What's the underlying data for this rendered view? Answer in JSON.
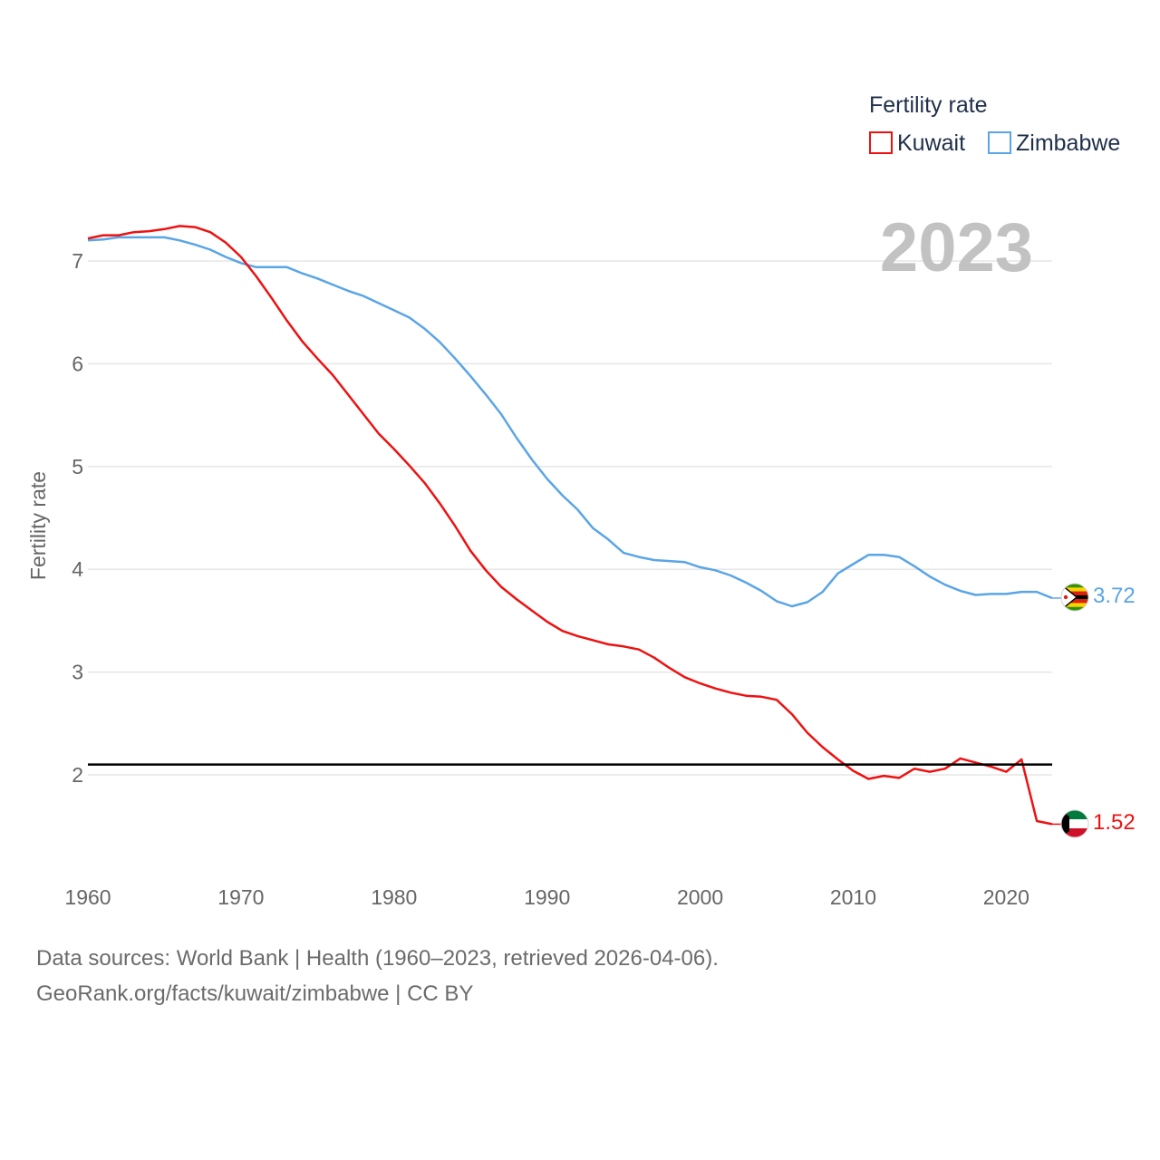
{
  "chart_data": {
    "type": "line",
    "title": "",
    "xlabel": "",
    "ylabel": "Fertility rate",
    "xlim": [
      1960,
      2023
    ],
    "ylim": [
      1.0,
      7.6
    ],
    "xticks": [
      1960,
      1970,
      1980,
      1990,
      2000,
      2010,
      2020
    ],
    "yticks": [
      2,
      3,
      4,
      5,
      6,
      7
    ],
    "legend_title": "Fertility rate",
    "legend_position": "top-right",
    "year_label": "2023",
    "reference_line": {
      "y": 2.1,
      "color": "#000000"
    },
    "grid": true,
    "x": [
      1960,
      1961,
      1962,
      1963,
      1964,
      1965,
      1966,
      1967,
      1968,
      1969,
      1970,
      1971,
      1972,
      1973,
      1974,
      1975,
      1976,
      1977,
      1978,
      1979,
      1980,
      1981,
      1982,
      1983,
      1984,
      1985,
      1986,
      1987,
      1988,
      1989,
      1990,
      1991,
      1992,
      1993,
      1994,
      1995,
      1996,
      1997,
      1998,
      1999,
      2000,
      2001,
      2002,
      2003,
      2004,
      2005,
      2006,
      2007,
      2008,
      2009,
      2010,
      2011,
      2012,
      2013,
      2014,
      2015,
      2016,
      2017,
      2018,
      2019,
      2020,
      2021,
      2022,
      2023
    ],
    "series": [
      {
        "name": "Kuwait",
        "color": "#ee1111",
        "end_label": "1.52",
        "flag_icon": "kuwait-flag-icon",
        "values": [
          7.22,
          7.25,
          7.25,
          7.28,
          7.29,
          7.31,
          7.34,
          7.33,
          7.28,
          7.18,
          7.04,
          6.85,
          6.64,
          6.42,
          6.22,
          6.05,
          5.89,
          5.7,
          5.51,
          5.32,
          5.17,
          5.01,
          4.84,
          4.64,
          4.42,
          4.18,
          3.99,
          3.83,
          3.71,
          3.6,
          3.49,
          3.4,
          3.35,
          3.31,
          3.27,
          3.25,
          3.22,
          3.14,
          3.04,
          2.95,
          2.89,
          2.84,
          2.8,
          2.77,
          2.76,
          2.73,
          2.59,
          2.41,
          2.27,
          2.15,
          2.04,
          1.96,
          1.99,
          1.97,
          2.06,
          2.03,
          2.06,
          2.16,
          2.12,
          2.08,
          2.03,
          2.15,
          1.55,
          1.52
        ]
      },
      {
        "name": "Zimbabwe",
        "color": "#5aa5e6",
        "end_label": "3.72",
        "flag_icon": "zimbabwe-flag-icon",
        "values": [
          7.2,
          7.21,
          7.23,
          7.23,
          7.23,
          7.23,
          7.2,
          7.16,
          7.11,
          7.04,
          6.98,
          6.94,
          6.94,
          6.94,
          6.88,
          6.83,
          6.77,
          6.71,
          6.66,
          6.59,
          6.52,
          6.45,
          6.34,
          6.21,
          6.05,
          5.88,
          5.7,
          5.51,
          5.28,
          5.07,
          4.88,
          4.72,
          4.58,
          4.4,
          4.29,
          4.16,
          4.12,
          4.09,
          4.08,
          4.07,
          4.02,
          3.99,
          3.94,
          3.87,
          3.79,
          3.69,
          3.64,
          3.68,
          3.78,
          3.96,
          4.05,
          4.14,
          4.14,
          4.12,
          4.03,
          3.93,
          3.85,
          3.79,
          3.75,
          3.76,
          3.76,
          3.78,
          3.78,
          3.72
        ]
      }
    ]
  },
  "footer": {
    "line1": "Data sources: World Bank | Health (1960–2023, retrieved 2026-04-06).",
    "line2": "GeoRank.org/facts/kuwait/zimbabwe | CC BY"
  }
}
